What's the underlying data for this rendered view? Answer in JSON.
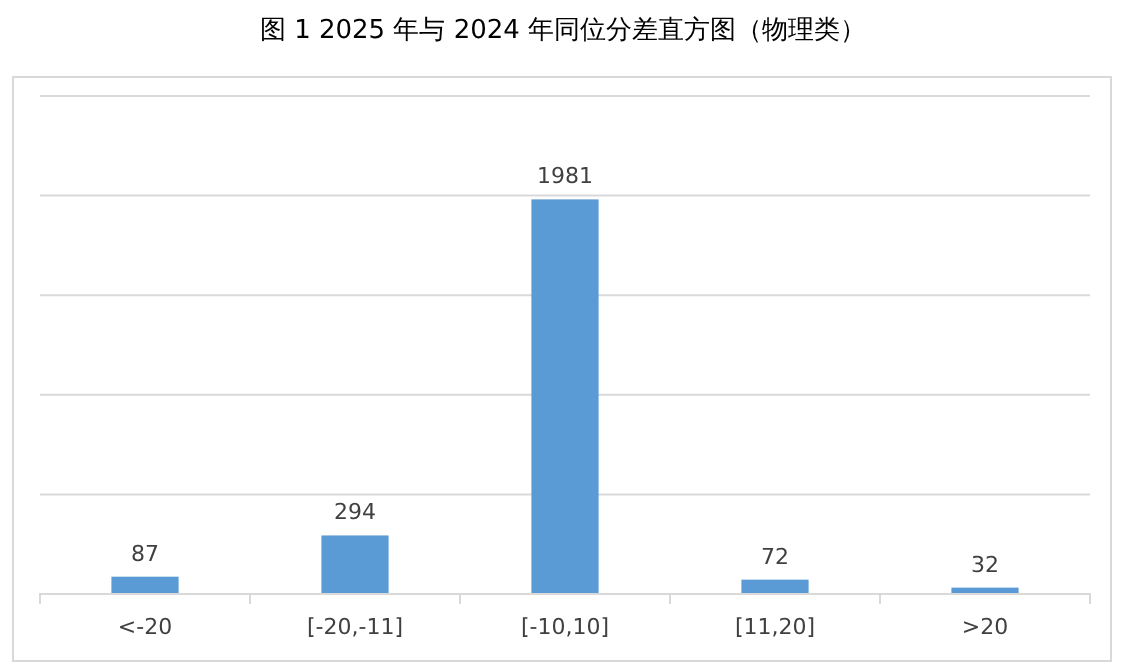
{
  "chart_data": {
    "type": "bar",
    "title": "图 1 2025 年与 2024 年同位分差直方图（物理类）",
    "categories": [
      "<-20",
      "[-20,-11]",
      "[-10,10]",
      "[11,20]",
      ">20"
    ],
    "values": [
      87,
      294,
      1981,
      72,
      32
    ],
    "color": "#5b9bd5",
    "ylim": [
      0,
      2500
    ],
    "yticks": [
      {
        "value": 0,
        "label": null
      },
      {
        "value": 500,
        "label": null
      },
      {
        "value": 1000,
        "label": null
      },
      {
        "value": 1500,
        "label": null
      },
      {
        "value": 2000,
        "label": null
      },
      {
        "value": 2500,
        "label": null
      }
    ],
    "grid": "y",
    "tick_labels": "x",
    "data_labels": true
  }
}
